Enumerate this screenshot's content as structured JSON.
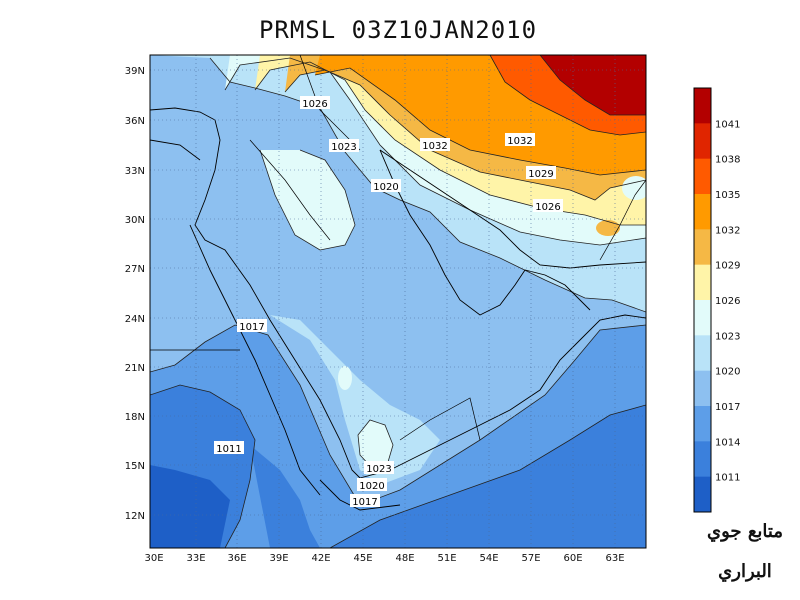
{
  "title": "PRMSL 03Z10JAN2010",
  "lat_labels": [
    "39N",
    "36N",
    "33N",
    "30N",
    "27N",
    "24N",
    "21N",
    "18N",
    "15N",
    "12N"
  ],
  "lon_labels": [
    "30E",
    "33E",
    "36E",
    "39E",
    "42E",
    "45E",
    "48E",
    "51E",
    "54E",
    "57E",
    "60E",
    "63E"
  ],
  "colorbar": {
    "labels": [
      "1041",
      "1038",
      "1035",
      "1032",
      "1029",
      "1026",
      "1023",
      "1020",
      "1017",
      "1014",
      "1011"
    ],
    "colors": [
      "#b30000",
      "#e02500",
      "#ff5a00",
      "#ff9a00",
      "#f5b845",
      "#fff4a8",
      "#e2fbfa",
      "#b9e3f8",
      "#8dc0f0",
      "#5d9ee8",
      "#3b80dc",
      "#1e5fc7"
    ]
  },
  "contour_labels": [
    "1026",
    "1023",
    "1032",
    "1032",
    "1029",
    "1026",
    "1020",
    "1017",
    "1011",
    "1023",
    "1020",
    "1017"
  ],
  "watermark": {
    "line1": "متابع جوي",
    "line2": "البراري"
  }
}
